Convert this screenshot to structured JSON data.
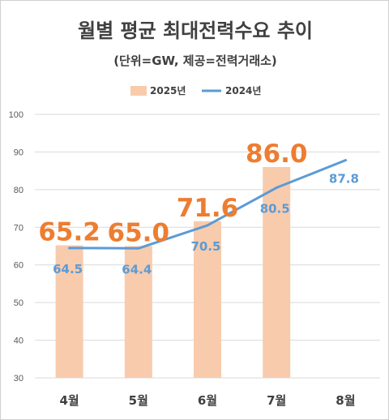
{
  "chart_data": {
    "type": "bar",
    "title": "월별 평균 최대전력수요 추이",
    "subtitle": "(단위=GW, 제공=전력거래소)",
    "categories": [
      "4월",
      "5월",
      "6월",
      "7월",
      "8월"
    ],
    "ylim": [
      30,
      100
    ],
    "yticks": [
      30,
      40,
      50,
      60,
      70,
      80,
      90,
      100
    ],
    "grid": true,
    "legend_position": "top-center",
    "series": [
      {
        "name": "2025년",
        "type": "bar",
        "color": "#f8cbad",
        "label_color": "#ed7d31",
        "values": [
          65.2,
          65.0,
          71.6,
          86.0,
          null
        ],
        "labels": [
          "65.2",
          "65.0",
          "71.6",
          "86.0",
          ""
        ]
      },
      {
        "name": "2024년",
        "type": "line",
        "color": "#5b9bd5",
        "label_color": "#5b9bd5",
        "values": [
          64.5,
          64.4,
          70.5,
          80.5,
          87.8
        ],
        "labels": [
          "64.5",
          "64.4",
          "70.5",
          "80.5",
          "87.8"
        ]
      }
    ]
  }
}
